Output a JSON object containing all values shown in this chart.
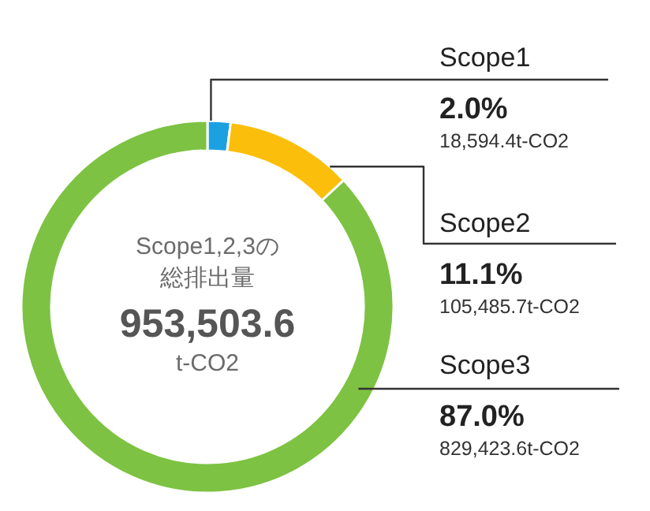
{
  "chart_data": {
    "type": "donut",
    "title": "Scope1,2,3の",
    "subtitle": "総排出量",
    "categories": [
      "Scope1",
      "Scope2",
      "Scope3"
    ],
    "values": [
      2.0,
      11.1,
      87.0
    ],
    "colors": [
      "#1ba1e2",
      "#fbbf0b",
      "#7dc242"
    ],
    "value_labels": [
      "2.0%",
      "11.1%",
      "87.0%"
    ],
    "annotations": [
      "953,503.6",
      "t-CO2",
      "18,594.4t-CO2",
      "105,485.7t-CO2",
      "829,423.6t-CO2"
    ]
  }
}
